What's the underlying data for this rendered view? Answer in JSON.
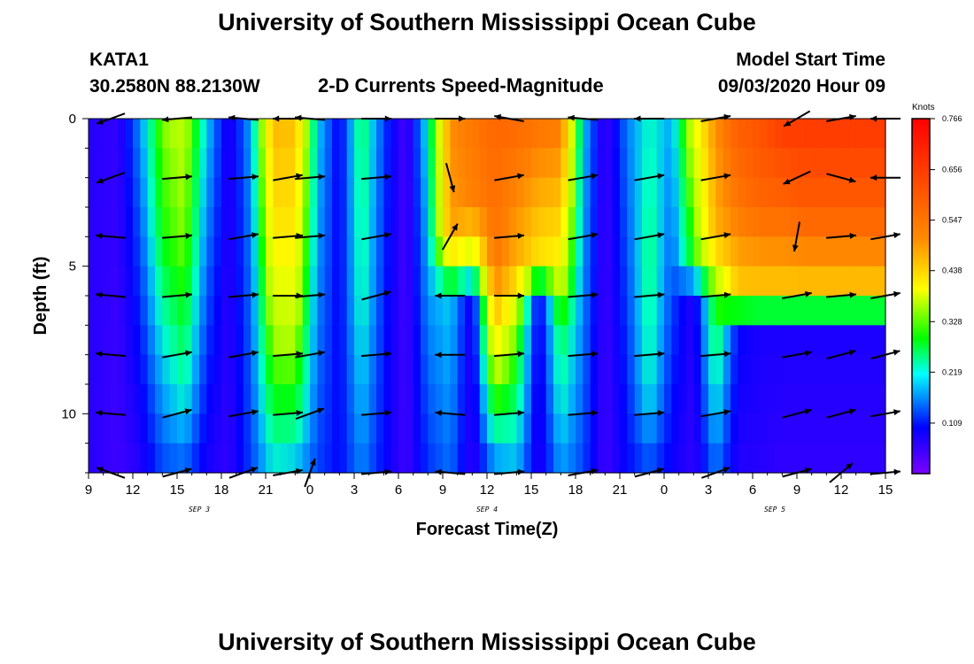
{
  "header": {
    "title": "University of Southern Mississippi Ocean Cube",
    "station": "KATA1",
    "coords": "30.2580N 88.2130W",
    "subtitle": "2-D Currents Speed-Magnitude",
    "model_start_label": "Model Start Time",
    "model_start_value": "09/03/2020 Hour 09"
  },
  "footer": {
    "title": "University of Southern Mississippi Ocean Cube"
  },
  "chart_data": {
    "type": "heatmap",
    "title": "2-D Currents Speed-Magnitude",
    "xlabel": "Forecast Time(Z)",
    "ylabel": "Depth (ft)",
    "x_range_hours_from_start": [
      0,
      54
    ],
    "x_tick_labels": [
      "9",
      "12",
      "15",
      "18",
      "21",
      "0",
      "3",
      "6",
      "9",
      "12",
      "15",
      "18",
      "21",
      "0",
      "3",
      "6",
      "9",
      "12",
      "15"
    ],
    "day_labels": [
      {
        "label": "SEP 3",
        "hour": 7.5
      },
      {
        "label": "SEP 4",
        "hour": 27
      },
      {
        "label": "SEP 5",
        "hour": 46.5
      }
    ],
    "y_range_ft": [
      0,
      12
    ],
    "y_tick_labels": [
      {
        "label": "0",
        "value": 0
      },
      {
        "label": "5",
        "value": 5
      },
      {
        "label": "10",
        "value": 10
      }
    ],
    "colorbar": {
      "title": "Knots",
      "min": 0.0,
      "max": 0.766,
      "tick_labels": [
        "0.766",
        "0.656",
        "0.547",
        "0.438",
        "0.328",
        "0.219",
        "0.109"
      ],
      "tick_values": [
        0.766,
        0.656,
        0.547,
        0.438,
        0.328,
        0.219,
        0.109
      ]
    },
    "depth_columns": [
      {
        "hour": 0,
        "profile": [
          [
            0,
            0.07
          ],
          [
            12,
            0.07
          ]
        ]
      },
      {
        "hour": 2,
        "profile": [
          [
            0,
            0.06
          ],
          [
            12,
            0.05
          ]
        ]
      },
      {
        "hour": 3.5,
        "profile": [
          [
            0,
            0.17
          ],
          [
            12,
            0.07
          ]
        ]
      },
      {
        "hour": 5,
        "profile": [
          [
            0,
            0.32
          ],
          [
            4,
            0.28
          ],
          [
            9,
            0.18
          ],
          [
            12,
            0.13
          ]
        ]
      },
      {
        "hour": 6.5,
        "profile": [
          [
            0,
            0.35
          ],
          [
            4,
            0.32
          ],
          [
            9,
            0.23
          ],
          [
            12,
            0.14
          ]
        ]
      },
      {
        "hour": 8,
        "profile": [
          [
            0,
            0.2
          ],
          [
            12,
            0.08
          ]
        ]
      },
      {
        "hour": 9.5,
        "profile": [
          [
            0,
            0.07
          ],
          [
            12,
            0.06
          ]
        ]
      },
      {
        "hour": 11,
        "profile": [
          [
            0,
            0.18
          ],
          [
            6,
            0.15
          ],
          [
            12,
            0.13
          ]
        ]
      },
      {
        "hour": 12.5,
        "profile": [
          [
            0,
            0.48
          ],
          [
            4,
            0.42
          ],
          [
            7,
            0.34
          ],
          [
            10,
            0.26
          ],
          [
            12,
            0.2
          ]
        ]
      },
      {
        "hour": 14,
        "profile": [
          [
            0,
            0.47
          ],
          [
            4,
            0.42
          ],
          [
            7,
            0.35
          ],
          [
            10,
            0.26
          ],
          [
            12,
            0.18
          ]
        ]
      },
      {
        "hour": 15.5,
        "profile": [
          [
            0,
            0.2
          ],
          [
            12,
            0.13
          ]
        ]
      },
      {
        "hour": 17,
        "profile": [
          [
            0,
            0.09
          ],
          [
            12,
            0.1
          ]
        ]
      },
      {
        "hour": 18.5,
        "profile": [
          [
            0,
            0.26
          ],
          [
            6,
            0.23
          ],
          [
            12,
            0.16
          ]
        ]
      },
      {
        "hour": 20,
        "profile": [
          [
            0,
            0.13
          ],
          [
            12,
            0.1
          ]
        ]
      },
      {
        "hour": 21.5,
        "profile": [
          [
            0,
            0.04
          ],
          [
            12,
            0.05
          ]
        ]
      },
      {
        "hour": 23,
        "profile": [
          [
            0,
            0.22
          ],
          [
            12,
            0.12
          ]
        ]
      },
      {
        "hour": 24.5,
        "profile": [
          [
            0,
            0.52
          ],
          [
            4,
            0.5
          ],
          [
            6,
            0.2
          ],
          [
            12,
            0.15
          ]
        ]
      },
      {
        "hour": 26,
        "profile": [
          [
            0,
            0.55
          ],
          [
            3,
            0.53
          ],
          [
            5,
            0.32
          ],
          [
            6,
            0.07
          ],
          [
            12,
            0.06
          ]
        ]
      },
      {
        "hour": 27.5,
        "profile": [
          [
            0,
            0.58
          ],
          [
            5,
            0.55
          ],
          [
            6,
            0.5
          ],
          [
            12,
            0.15
          ]
        ]
      },
      {
        "hour": 29,
        "profile": [
          [
            0,
            0.58
          ],
          [
            5,
            0.48
          ],
          [
            7,
            0.32
          ],
          [
            12,
            0.18
          ]
        ]
      },
      {
        "hour": 30.5,
        "profile": [
          [
            0,
            0.56
          ],
          [
            5,
            0.42
          ],
          [
            6,
            0.08
          ],
          [
            12,
            0.07
          ]
        ]
      },
      {
        "hour": 32,
        "profile": [
          [
            0,
            0.55
          ],
          [
            5,
            0.4
          ],
          [
            7,
            0.27
          ],
          [
            12,
            0.17
          ]
        ]
      },
      {
        "hour": 33.5,
        "profile": [
          [
            0,
            0.2
          ],
          [
            12,
            0.13
          ]
        ]
      },
      {
        "hour": 35,
        "profile": [
          [
            0,
            0.05
          ],
          [
            12,
            0.05
          ]
        ]
      },
      {
        "hour": 36.5,
        "profile": [
          [
            0,
            0.16
          ],
          [
            12,
            0.1
          ]
        ]
      },
      {
        "hour": 38,
        "profile": [
          [
            0,
            0.22
          ],
          [
            5,
            0.25
          ],
          [
            9,
            0.22
          ],
          [
            12,
            0.13
          ]
        ]
      },
      {
        "hour": 39.5,
        "profile": [
          [
            0,
            0.18
          ],
          [
            5,
            0.14
          ],
          [
            12,
            0.09
          ]
        ]
      },
      {
        "hour": 41,
        "profile": [
          [
            0,
            0.38
          ],
          [
            5,
            0.28
          ],
          [
            6,
            0.07
          ],
          [
            12,
            0.06
          ]
        ]
      },
      {
        "hour": 42.5,
        "profile": [
          [
            0,
            0.52
          ],
          [
            4,
            0.48
          ],
          [
            6,
            0.3
          ],
          [
            12,
            0.15
          ]
        ]
      },
      {
        "hour": 44,
        "profile": [
          [
            0,
            0.6
          ],
          [
            3,
            0.55
          ],
          [
            6,
            0.45
          ],
          [
            7,
            0.1
          ],
          [
            12,
            0.07
          ]
        ]
      },
      {
        "hour": 45.5,
        "profile": [
          [
            0,
            0.62
          ],
          [
            3,
            0.58
          ],
          [
            6,
            0.45
          ],
          [
            7,
            0.08
          ],
          [
            12,
            0.07
          ]
        ]
      },
      {
        "hour": 47,
        "profile": [
          [
            0,
            0.66
          ],
          [
            3,
            0.58
          ],
          [
            6,
            0.45
          ],
          [
            7,
            0.08
          ],
          [
            12,
            0.06
          ]
        ]
      },
      {
        "hour": 48.5,
        "profile": [
          [
            0,
            0.66
          ],
          [
            3,
            0.6
          ],
          [
            6,
            0.45
          ],
          [
            7,
            0.08
          ],
          [
            12,
            0.06
          ]
        ]
      },
      {
        "hour": 50,
        "profile": [
          [
            0,
            0.66
          ],
          [
            3,
            0.6
          ],
          [
            6,
            0.45
          ],
          [
            7,
            0.08
          ],
          [
            12,
            0.06
          ]
        ]
      },
      {
        "hour": 51.5,
        "profile": [
          [
            0,
            0.66
          ],
          [
            3,
            0.6
          ],
          [
            6,
            0.45
          ],
          [
            7,
            0.08
          ],
          [
            12,
            0.06
          ]
        ]
      },
      {
        "hour": 53,
        "profile": [
          [
            0,
            0.66
          ],
          [
            3,
            0.6
          ],
          [
            6,
            0.45
          ],
          [
            7,
            0.08
          ],
          [
            12,
            0.06
          ]
        ]
      }
    ],
    "vector_hours": [
      1.5,
      6,
      10.5,
      13.5,
      15,
      19.5,
      24.5,
      28.5,
      33.5,
      38,
      42.5,
      48,
      51,
      54
    ],
    "vector_depths_ft": [
      0,
      2,
      4,
      6,
      8,
      10,
      12
    ],
    "vector_angles_deg": [
      [
        200,
        200,
        175,
        175,
        175,
        175,
        160
      ],
      [
        185,
        5,
        5,
        5,
        10,
        15,
        15
      ],
      [
        175,
        5,
        10,
        5,
        10,
        10,
        20
      ],
      [
        180,
        10,
        5,
        0,
        5,
        5,
        10
      ],
      [
        175,
        5,
        5,
        5,
        10,
        20,
        70
      ],
      [
        0,
        5,
        10,
        15,
        5,
        5,
        5
      ],
      [
        0,
        -75,
        60,
        180,
        180,
        175,
        175
      ],
      [
        170,
        10,
        5,
        0,
        5,
        5,
        5
      ],
      [
        175,
        10,
        10,
        5,
        5,
        5,
        10
      ],
      [
        180,
        10,
        10,
        5,
        5,
        5,
        15
      ],
      [
        10,
        10,
        10,
        5,
        5,
        10,
        20
      ],
      [
        -150,
        -155,
        -100,
        10,
        10,
        15,
        15
      ],
      [
        10,
        -15,
        5,
        5,
        15,
        15,
        40
      ],
      [
        180,
        180,
        10,
        10,
        15,
        10,
        5
      ]
    ]
  }
}
